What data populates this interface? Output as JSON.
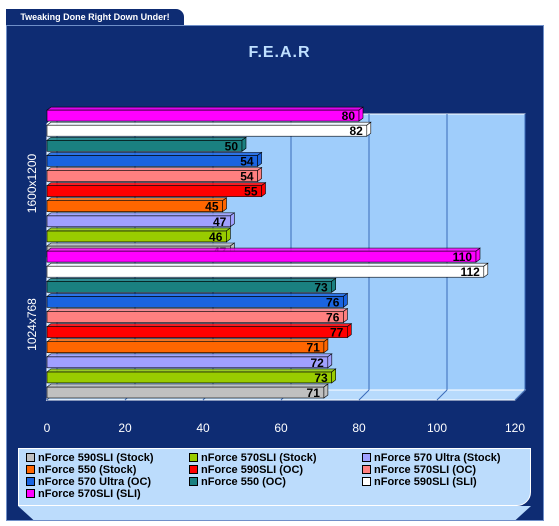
{
  "header": {
    "tagline": "Tweaking Done Right Down Under!"
  },
  "colors": {
    "panel": "#0e2c73",
    "plot_back": "#9fcdfb",
    "plot_wall": "#b7dafc"
  },
  "chart_data": {
    "type": "bar",
    "orientation": "horizontal",
    "title": "F.E.A.R",
    "xlabel": "",
    "ylabel": "",
    "xlim": [
      0,
      120
    ],
    "x_ticks": [
      0,
      20,
      40,
      60,
      80,
      100,
      120
    ],
    "grid": true,
    "legend_position": "bottom",
    "categories": [
      "1600x1200",
      "1024x768"
    ],
    "series": [
      {
        "name": "nForce 590SLI (Stock)",
        "color": "#c0c0c0",
        "values": [
          47,
          71
        ]
      },
      {
        "name": "nForce 570SLI (Stock)",
        "color": "#99cc00",
        "values": [
          46,
          73
        ]
      },
      {
        "name": "nForce 570 Ultra (Stock)",
        "color": "#a0a0ff",
        "values": [
          47,
          72
        ]
      },
      {
        "name": "nForce 550 (Stock)",
        "color": "#ff6600",
        "values": [
          45,
          71
        ]
      },
      {
        "name": "nForce 590SLI (OC)",
        "color": "#ff0000",
        "values": [
          55,
          77
        ]
      },
      {
        "name": "nForce 570SLI (OC)",
        "color": "#ff8080",
        "values": [
          54,
          76
        ]
      },
      {
        "name": "nForce 570 Ultra (OC)",
        "color": "#1a64e0",
        "values": [
          54,
          76
        ]
      },
      {
        "name": "nForce 550 (OC)",
        "color": "#1a8080",
        "values": [
          50,
          73
        ]
      },
      {
        "name": "nForce 590SLI (SLI)",
        "color": "#ffffff",
        "values": [
          82,
          112
        ]
      },
      {
        "name": "nForce 570SLI (SLI)",
        "color": "#ff00ff",
        "values": [
          80,
          110
        ]
      }
    ]
  }
}
